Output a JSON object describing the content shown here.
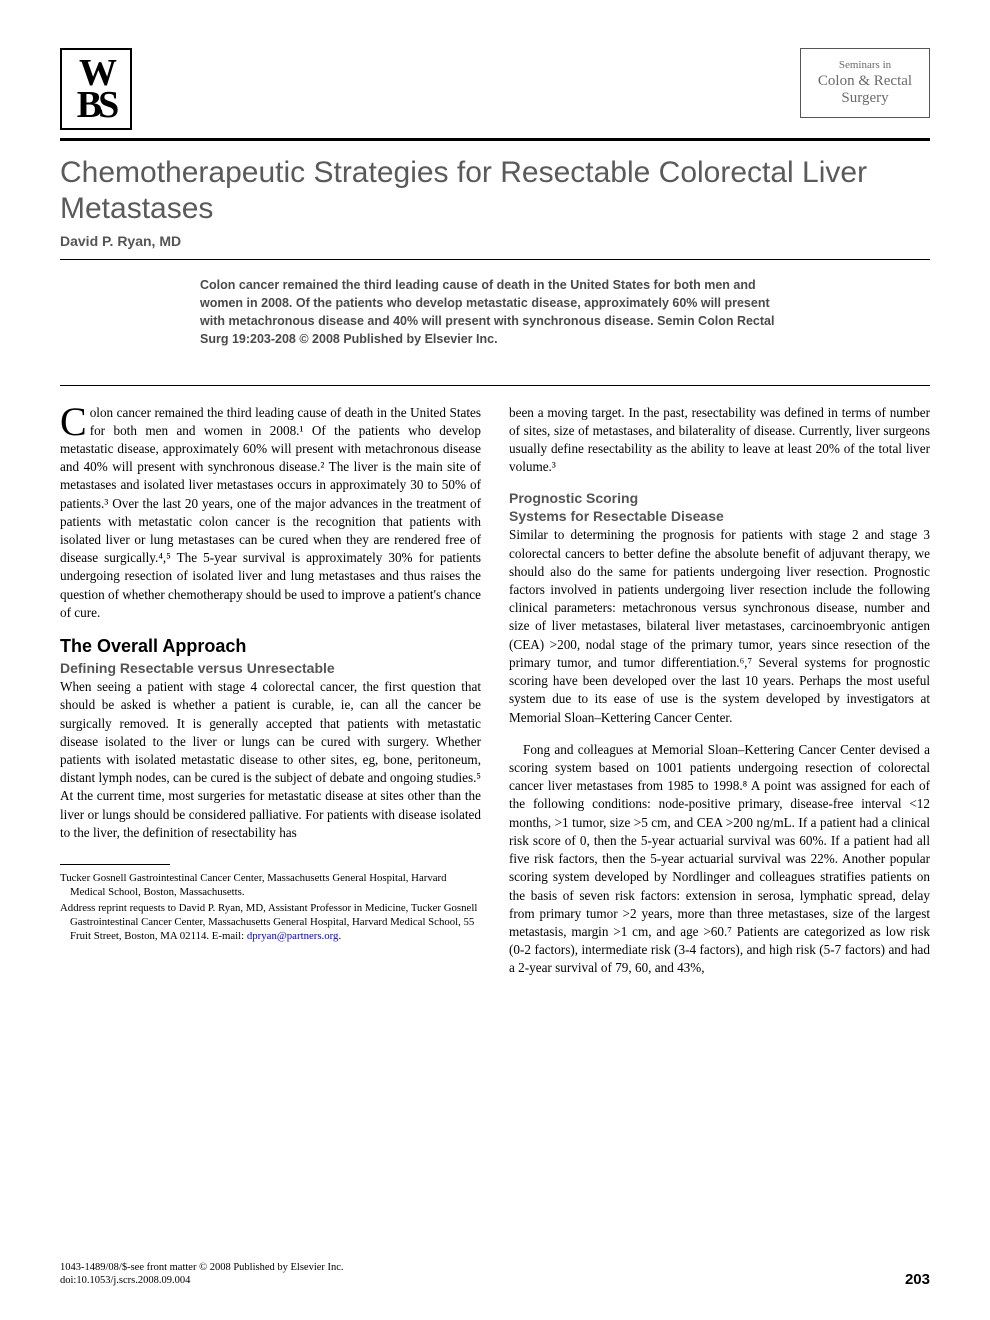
{
  "header": {
    "logo_text": "W\nBS",
    "journal_line1": "Seminars in",
    "journal_line2": "Colon & Rectal",
    "journal_line3": "Surgery"
  },
  "title": "Chemotherapeutic Strategies for Resectable Colorectal Liver Metastases",
  "author": "David P. Ryan, MD",
  "abstract": "Colon cancer remained the third leading cause of death in the United States for both men and women in 2008. Of the patients who develop metastatic disease, approximately 60% will present with metachronous disease and 40% will present with synchronous disease. Semin Colon Rectal Surg 19:203-208 © 2008 Published by Elsevier Inc.",
  "col1": {
    "intro_dropcap": "C",
    "intro": "olon cancer remained the third leading cause of death in the United States for both men and women in 2008.¹ Of the patients who develop metastatic disease, approximately 60% will present with metachronous disease and 40% will present with synchronous disease.² The liver is the main site of metastases and isolated liver metastases occurs in approximately 30 to 50% of patients.³ Over the last 20 years, one of the major advances in the treatment of patients with metastatic colon cancer is the recognition that patients with isolated liver or lung metastases can be cured when they are rendered free of disease surgically.⁴,⁵ The 5-year survival is approximately 30% for patients undergoing resection of isolated liver and lung metastases and thus raises the question of whether chemotherapy should be used to improve a patient's chance of cure.",
    "h1": "The Overall Approach",
    "h2": "Defining Resectable versus Unresectable",
    "p2": "When seeing a patient with stage 4 colorectal cancer, the first question that should be asked is whether a patient is curable, ie, can all the cancer be surgically removed. It is generally accepted that patients with metastatic disease isolated to the liver or lungs can be cured with surgery. Whether patients with isolated metastatic disease to other sites, eg, bone, peritoneum, distant lymph nodes, can be cured is the subject of debate and ongoing studies.⁵ At the current time, most surgeries for metastatic disease at sites other than the liver or lungs should be considered palliative. For patients with disease isolated to the liver, the definition of resectability has",
    "fn1": "Tucker Gosnell Gastrointestinal Cancer Center, Massachusetts General Hospital, Harvard Medical School, Boston, Massachusetts.",
    "fn2_a": "Address reprint requests to David P. Ryan, MD, Assistant Professor in Medicine, Tucker Gosnell Gastrointestinal Cancer Center, Massachusetts General Hospital, Harvard Medical School, 55 Fruit Street, Boston, MA 02114. E-mail: ",
    "fn2_email": "dpryan@partners.org",
    "fn2_b": "."
  },
  "col2": {
    "p1": "been a moving target. In the past, resectability was defined in terms of number of sites, size of metastases, and bilaterality of disease. Currently, liver surgeons usually define resectability as the ability to leave at least 20% of the total liver volume.³",
    "h2a": "Prognostic Scoring",
    "h2b": "Systems for Resectable Disease",
    "p2": "Similar to determining the prognosis for patients with stage 2 and stage 3 colorectal cancers to better define the absolute benefit of adjuvant therapy, we should also do the same for patients undergoing liver resection. Prognostic factors involved in patients undergoing liver resection include the following clinical parameters: metachronous versus synchronous disease, number and size of liver metastases, bilateral liver metastases, carcinoembryonic antigen (CEA) >200, nodal stage of the primary tumor, years since resection of the primary tumor, and tumor differentiation.⁶,⁷ Several systems for prognostic scoring have been developed over the last 10 years. Perhaps the most useful system due to its ease of use is the system developed by investigators at Memorial Sloan–Kettering Cancer Center.",
    "p3": "Fong and colleagues at Memorial Sloan–Kettering Cancer Center devised a scoring system based on 1001 patients undergoing resection of colorectal cancer liver metastases from 1985 to 1998.⁸ A point was assigned for each of the following conditions: node-positive primary, disease-free interval <12 months, >1 tumor, size >5 cm, and CEA >200 ng/mL. If a patient had a clinical risk score of 0, then the 5-year actuarial survival was 60%. If a patient had all five risk factors, then the 5-year actuarial survival was 22%. Another popular scoring system developed by Nordlinger and colleagues stratifies patients on the basis of seven risk factors: extension in serosa, lymphatic spread, delay from primary tumor >2 years, more than three metastases, size of the largest metastasis, margin >1 cm, and age >60.⁷ Patients are categorized as low risk (0-2 factors), intermediate risk (3-4 factors), and high risk (5-7 factors) and had a 2-year survival of 79, 60, and 43%,"
  },
  "footer": {
    "line1": "1043-1489/08/$-see front matter © 2008 Published by Elsevier Inc.",
    "line2": "doi:10.1053/j.scrs.2008.09.004",
    "page": "203"
  }
}
